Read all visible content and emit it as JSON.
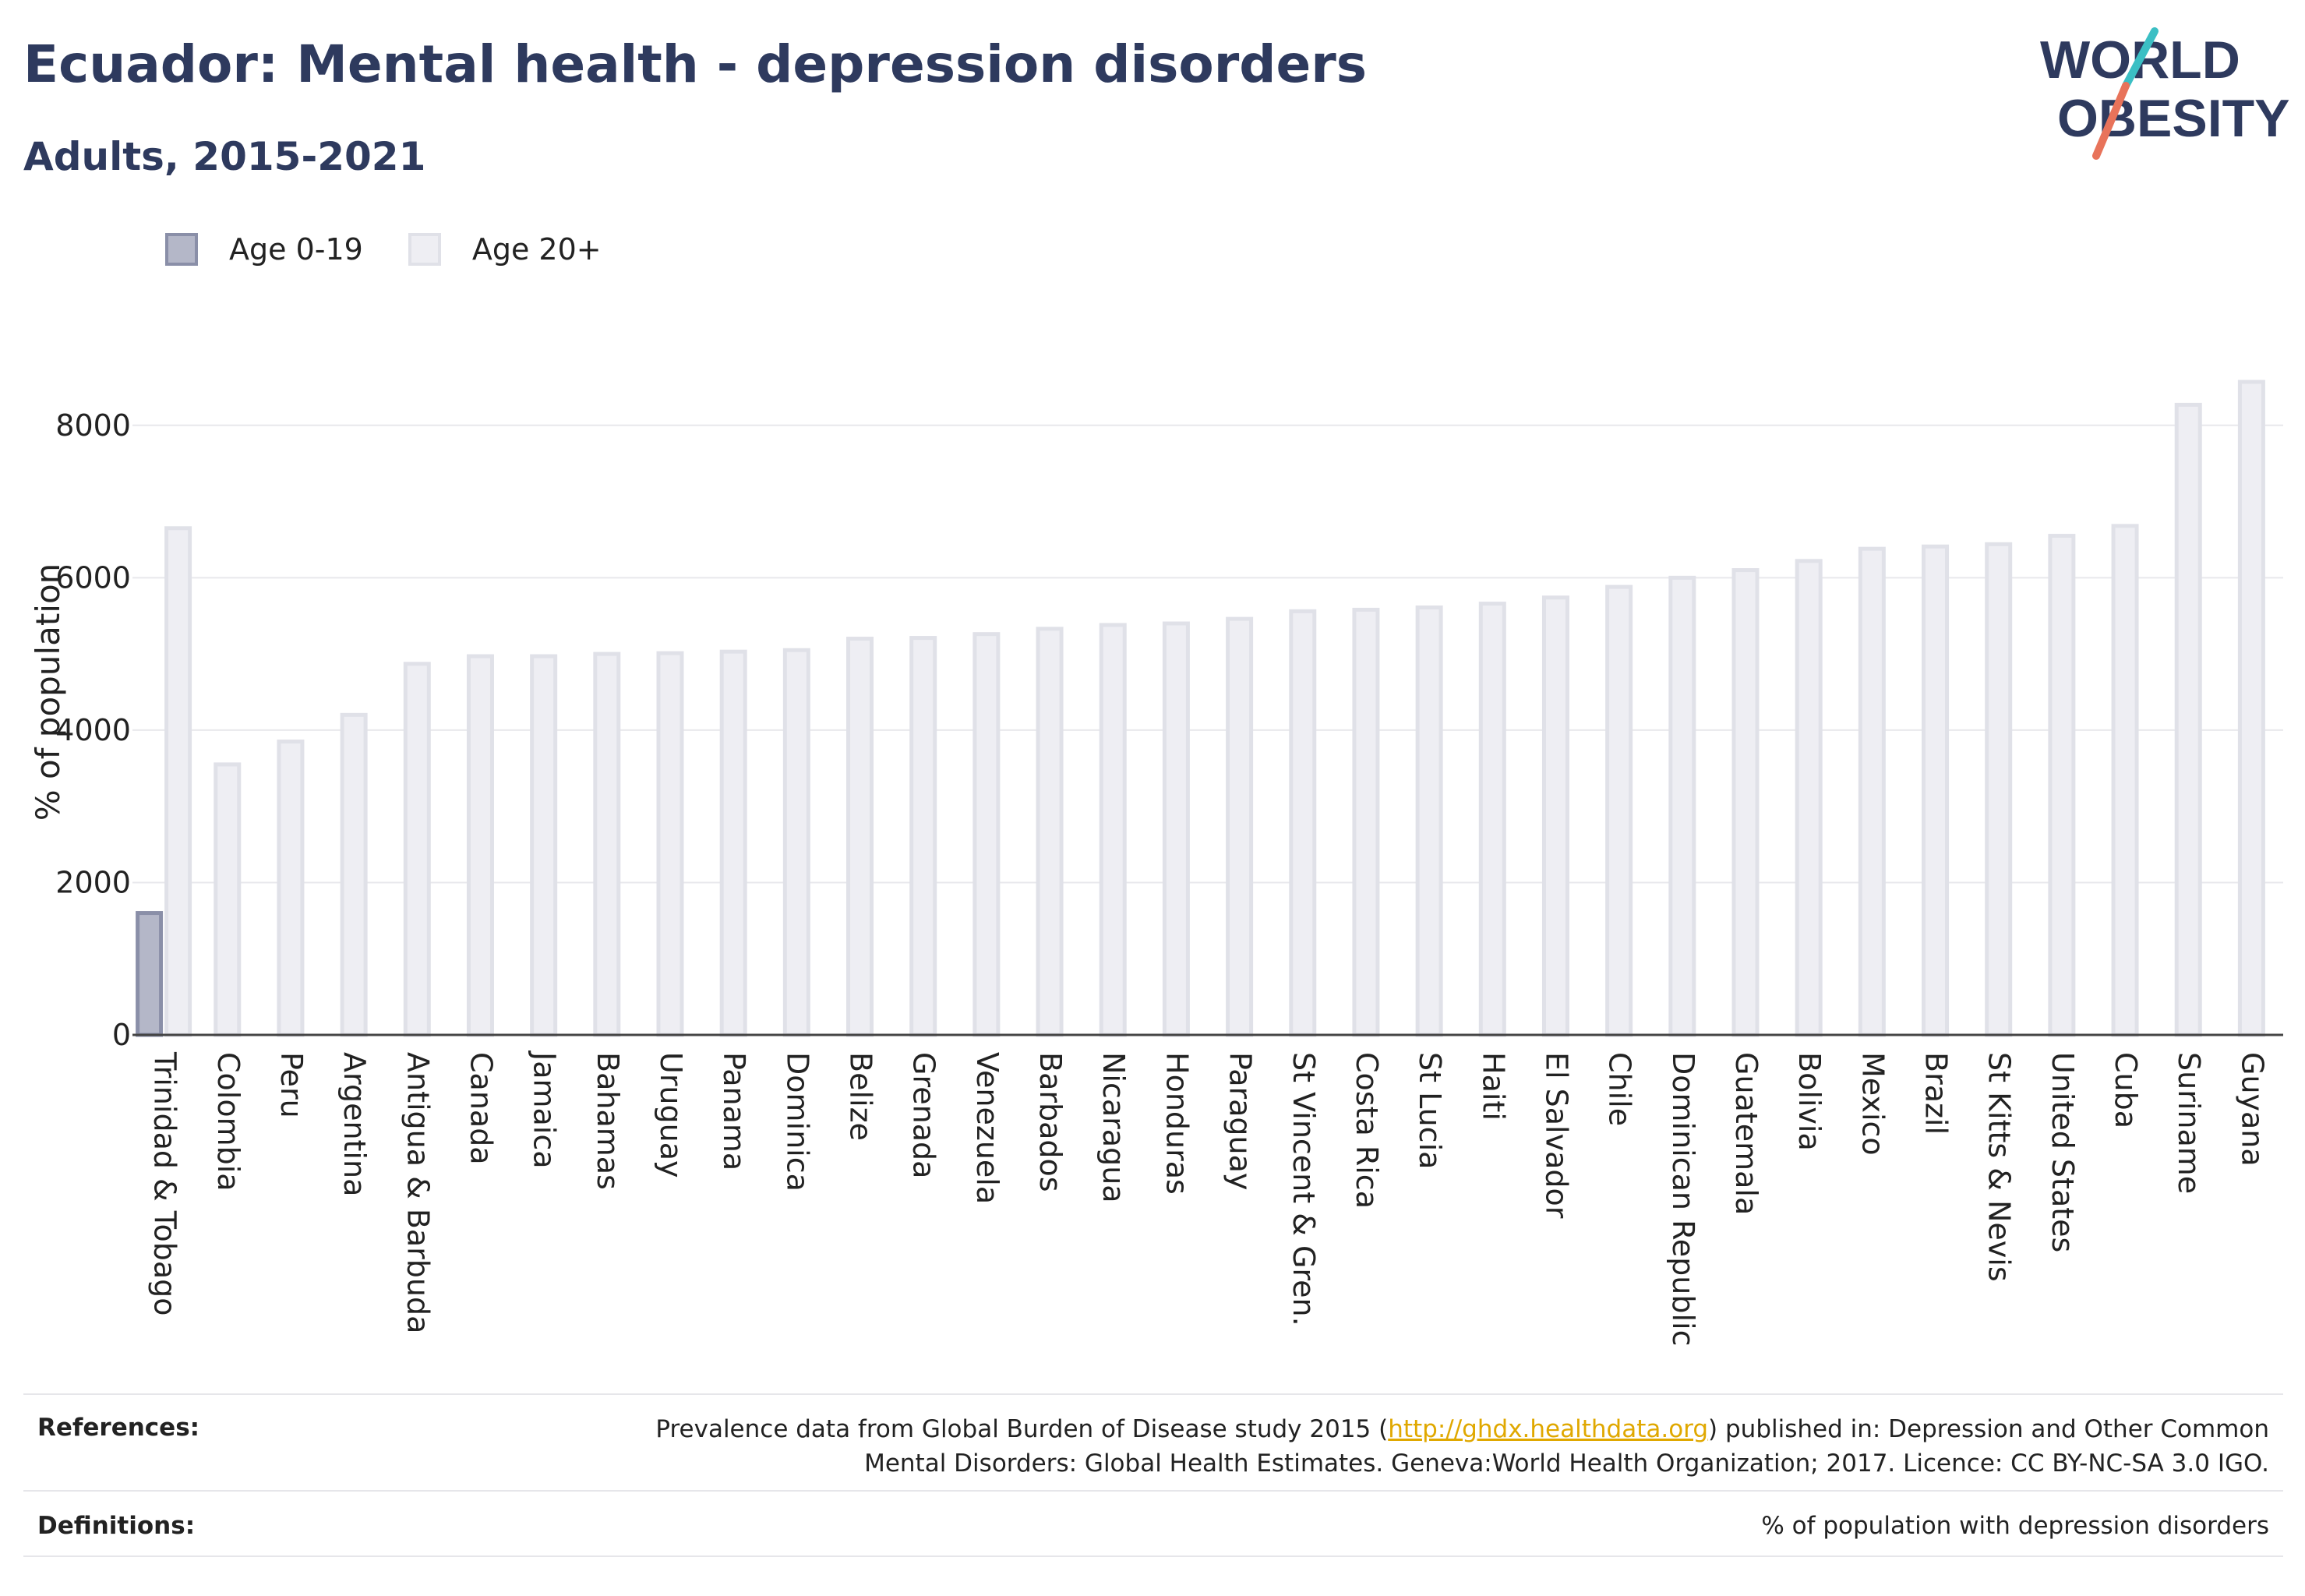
{
  "header": {
    "title": "Ecuador: Mental health - depression disorders",
    "subtitle": "Adults, 2015-2021"
  },
  "logo": {
    "line1": "WORLD",
    "line2": "OBESITY"
  },
  "legend": [
    {
      "label": "Age 0-19",
      "color": "#b4b7c8"
    },
    {
      "label": "Age 20+",
      "color": "#eeeef3"
    }
  ],
  "chart_data": {
    "type": "bar",
    "ylabel": "% of population",
    "xlabel": "",
    "ylim": [
      0,
      9000
    ],
    "yticks": [
      0,
      2000,
      4000,
      6000,
      8000
    ],
    "grid": true,
    "legend_position": "top-left",
    "categories": [
      "Trinidad & Tobago",
      "Colombia",
      "Peru",
      "Argentina",
      "Antigua & Barbuda",
      "Canada",
      "Jamaica",
      "Bahamas",
      "Uruguay",
      "Panama",
      "Dominica",
      "Belize",
      "Grenada",
      "Venezuela",
      "Barbados",
      "Nicaragua",
      "Honduras",
      "Paraguay",
      "St Vincent & Gren.",
      "Costa Rica",
      "St Lucia",
      "Haiti",
      "El Salvador",
      "Chile",
      "Dominican Republic",
      "Guatemala",
      "Bolivia",
      "Mexico",
      "Brazil",
      "St Kitts & Nevis",
      "United States",
      "Cuba",
      "Suriname",
      "Guyana"
    ],
    "series": [
      {
        "name": "Age 0-19",
        "color": "#b4b7c8",
        "values": [
          1600,
          null,
          null,
          null,
          null,
          null,
          null,
          null,
          null,
          null,
          null,
          null,
          null,
          null,
          null,
          null,
          null,
          null,
          null,
          null,
          null,
          null,
          null,
          null,
          null,
          null,
          null,
          null,
          null,
          null,
          null,
          null,
          null,
          null
        ]
      },
      {
        "name": "Age 20+",
        "color": "#eeeef3",
        "values": [
          6650,
          3550,
          3850,
          4200,
          4870,
          4970,
          4970,
          5000,
          5010,
          5030,
          5050,
          5200,
          5210,
          5260,
          5330,
          5380,
          5400,
          5460,
          5560,
          5580,
          5610,
          5660,
          5740,
          5880,
          6000,
          6100,
          6220,
          6380,
          6410,
          6440,
          6550,
          6680,
          8270,
          8570
        ]
      }
    ]
  },
  "footer": {
    "references_label": "References:",
    "references_pre": "Prevalence data from Global Burden of Disease study 2015 (",
    "references_link": "http://ghdx.healthdata.org",
    "references_post_1": ") published in: Depression and Other Common",
    "references_line2": "Mental Disorders: Global Health Estimates. Geneva:World Health Organization; 2017. Licence: CC BY-NC-SA 3.0 IGO.",
    "definitions_label": "Definitions:",
    "definitions_text": "% of population with depression disorders"
  }
}
